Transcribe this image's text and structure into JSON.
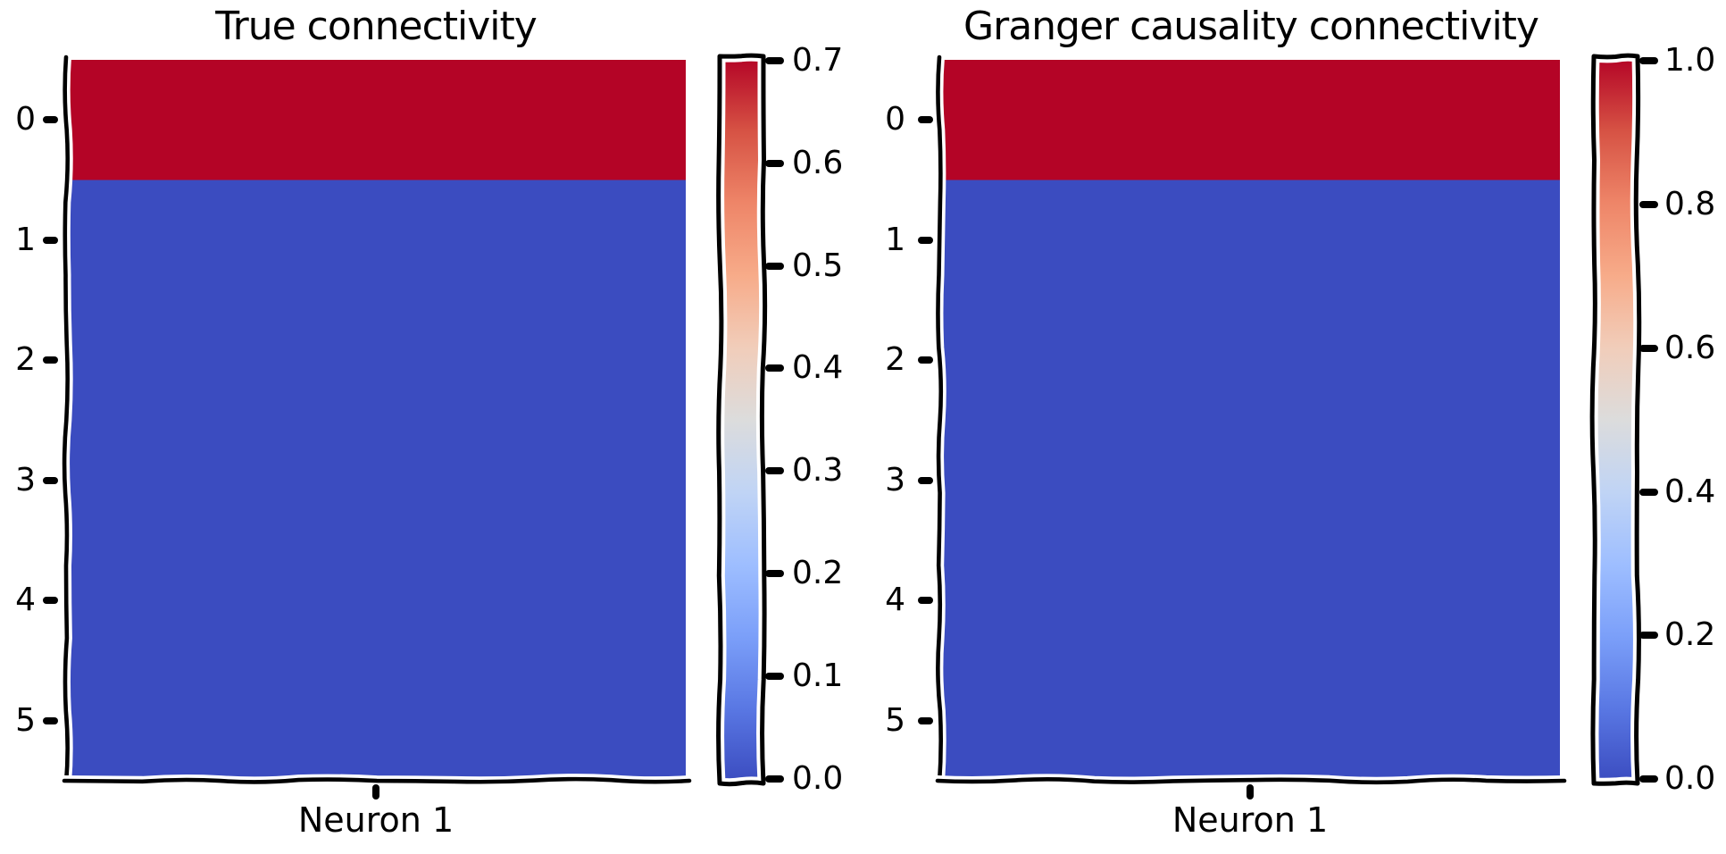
{
  "figure": {
    "style": "xkcd-hand-drawn",
    "background": "#ffffff",
    "ink_color": "#000000"
  },
  "panels": [
    {
      "title": "True connectivity",
      "xlabel": "Neuron 1",
      "y_tick_labels": [
        "0",
        "1",
        "2",
        "3",
        "4",
        "5"
      ],
      "colorbar": {
        "tick_labels": [
          "0.7",
          "0.6",
          "0.5",
          "0.4",
          "0.3",
          "0.2",
          "0.1",
          "0.0"
        ]
      }
    },
    {
      "title": "Granger causality connectivity",
      "xlabel": "Neuron 1",
      "y_tick_labels": [
        "0",
        "1",
        "2",
        "3",
        "4",
        "5"
      ],
      "colorbar": {
        "tick_labels": [
          "1.0",
          "0.8",
          "0.6",
          "0.4",
          "0.2",
          "0.0"
        ]
      }
    }
  ],
  "colors": {
    "heatmap_high": "#b40426",
    "heatmap_low": "#3b4cc0",
    "colorbar_mid": "#dcdcdc"
  },
  "colormap_stops": [
    {
      "t": 0.0,
      "color": "#3b4cc0"
    },
    {
      "t": 0.1,
      "color": "#5977e3"
    },
    {
      "t": 0.2,
      "color": "#7b9ff9"
    },
    {
      "t": 0.3,
      "color": "#9ebeff"
    },
    {
      "t": 0.4,
      "color": "#c0d4f5"
    },
    {
      "t": 0.5,
      "color": "#dcdcdc"
    },
    {
      "t": 0.6,
      "color": "#f1cdba"
    },
    {
      "t": 0.7,
      "color": "#f7ab89"
    },
    {
      "t": 0.8,
      "color": "#ee8568"
    },
    {
      "t": 0.9,
      "color": "#d65244"
    },
    {
      "t": 1.0,
      "color": "#b40426"
    }
  ],
  "chart_data": [
    {
      "type": "heatmap",
      "title": "True connectivity",
      "x_categories": [
        "Neuron 1"
      ],
      "y_categories": [
        "0",
        "1",
        "2",
        "3",
        "4",
        "5"
      ],
      "values": [
        [
          0.7
        ],
        [
          0.0
        ],
        [
          0.0
        ],
        [
          0.0
        ],
        [
          0.0
        ],
        [
          0.0
        ]
      ],
      "vmin": 0.0,
      "vmax": 0.7,
      "colormap": "coolwarm",
      "colorbar_ticks": [
        0.0,
        0.1,
        0.2,
        0.3,
        0.4,
        0.5,
        0.6,
        0.7
      ],
      "legend_position": "right-colorbar",
      "grid": false,
      "style": "xkcd"
    },
    {
      "type": "heatmap",
      "title": "Granger causality connectivity",
      "x_categories": [
        "Neuron 1"
      ],
      "y_categories": [
        "0",
        "1",
        "2",
        "3",
        "4",
        "5"
      ],
      "values": [
        [
          1.0
        ],
        [
          0.0
        ],
        [
          0.0
        ],
        [
          0.0
        ],
        [
          0.0
        ],
        [
          0.0
        ]
      ],
      "vmin": 0.0,
      "vmax": 1.0,
      "colormap": "coolwarm",
      "colorbar_ticks": [
        0.0,
        0.2,
        0.4,
        0.6,
        0.8,
        1.0
      ],
      "legend_position": "right-colorbar",
      "grid": false,
      "style": "xkcd"
    }
  ]
}
